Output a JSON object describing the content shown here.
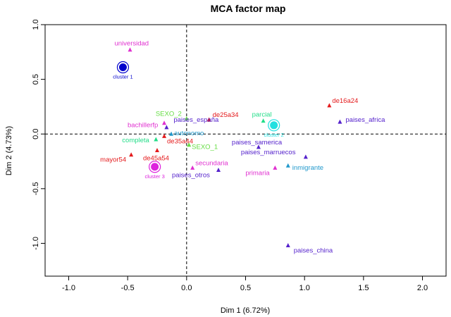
{
  "chart_data": {
    "type": "scatter",
    "title": "MCA factor map",
    "xlabel": "Dim 1 (6.72%)",
    "ylabel": "Dim 2 (4.73%)",
    "xlim": [
      -1.2,
      2.2
    ],
    "ylim": [
      -1.3,
      1.0
    ],
    "xticks": [
      "-1.0",
      "-0.5",
      "0.0",
      "0.5",
      "1.0",
      "1.5",
      "2.0"
    ],
    "yticks": [
      "1.0",
      "0.5",
      "0.0",
      "-0.5",
      "-1.0"
    ],
    "reference_lines": {
      "x": 0,
      "y": 0,
      "style": "dashed"
    },
    "colors": {
      "red": "#e41a1c",
      "magenta": "#e030d0",
      "green": "#66dd44",
      "teal": "#22dd88",
      "purple": "#5522cc",
      "cyan": "#2299cc",
      "blue": "#0000cc",
      "cluster_cyan": "#22e0e0",
      "cluster_magenta": "#dd22dd"
    },
    "points": [
      {
        "label": "universidad",
        "x": -0.48,
        "y": 0.77,
        "color": "magenta",
        "label_dx": -22,
        "label_dy": -6
      },
      {
        "label": "de16a24",
        "x": 1.21,
        "y": 0.26,
        "color": "red",
        "label_dx": 4,
        "label_dy": -4
      },
      {
        "label": "paises_africa",
        "x": 1.3,
        "y": 0.11,
        "color": "purple",
        "label_dx": 8,
        "label_dy": 0
      },
      {
        "label": "parcial",
        "x": 0.65,
        "y": 0.12,
        "color": "teal",
        "label_dx": -16,
        "label_dy": -6
      },
      {
        "label": "SEXO_2",
        "x": 0.0,
        "y": 0.14,
        "color": "green",
        "label_dx": -44,
        "label_dy": -4
      },
      {
        "label": "de25a34",
        "x": 0.19,
        "y": 0.13,
        "color": "red",
        "label_dx": 5,
        "label_dy": -4
      },
      {
        "label": "paises_españa",
        "x": -0.17,
        "y": 0.06,
        "color": "purple",
        "label_dx": 10,
        "label_dy": -8
      },
      {
        "label": "bachillerfp",
        "x": -0.19,
        "y": 0.1,
        "color": "magenta",
        "label_dx": -52,
        "label_dy": 6
      },
      {
        "label": "autonomo",
        "x": -0.13,
        "y": 0.0,
        "color": "cyan",
        "label_dx": 4,
        "label_dy": 2
      },
      {
        "label": "completa",
        "x": -0.26,
        "y": -0.05,
        "color": "teal",
        "label_dx": -48,
        "label_dy": 4
      },
      {
        "label": "de35a44",
        "x": -0.19,
        "y": -0.02,
        "color": "red",
        "label_dx": 4,
        "label_dy": 10
      },
      {
        "label": "SEXO_1",
        "x": 0.02,
        "y": -0.1,
        "color": "green",
        "label_dx": 4,
        "label_dy": 6
      },
      {
        "label": "paises_samerica",
        "x": 0.61,
        "y": -0.12,
        "color": "purple",
        "label_dx": -38,
        "label_dy": -4
      },
      {
        "label": "paises_marruecos",
        "x": 1.01,
        "y": -0.21,
        "color": "purple",
        "label_dx": -92,
        "label_dy": -4
      },
      {
        "label": "de45a54",
        "x": -0.25,
        "y": -0.15,
        "color": "red",
        "label_dx": -20,
        "label_dy": 14
      },
      {
        "label": "mayor54",
        "x": -0.47,
        "y": -0.19,
        "color": "red",
        "label_dx": -44,
        "label_dy": 10
      },
      {
        "label": "secundaria",
        "x": 0.05,
        "y": -0.31,
        "color": "magenta",
        "label_dx": 4,
        "label_dy": -4
      },
      {
        "label": "paises_otros",
        "x": 0.27,
        "y": -0.33,
        "color": "purple",
        "label_dx": -66,
        "label_dy": 10
      },
      {
        "label": "primaria",
        "x": 0.75,
        "y": -0.31,
        "color": "magenta",
        "label_dx": -42,
        "label_dy": 10
      },
      {
        "label": "inmigrante",
        "x": 0.86,
        "y": -0.29,
        "color": "cyan",
        "label_dx": 6,
        "label_dy": 6
      },
      {
        "label": "paises_china",
        "x": 0.86,
        "y": -1.02,
        "color": "purple",
        "label_dx": 8,
        "label_dy": 10
      }
    ],
    "clusters": [
      {
        "label": "cluster 1",
        "x": -0.54,
        "y": 0.61,
        "color": "blue"
      },
      {
        "label": "cluster 2",
        "x": 0.74,
        "y": 0.08,
        "color": "cluster_cyan"
      },
      {
        "label": "cluster 3",
        "x": -0.27,
        "y": -0.3,
        "color": "cluster_magenta"
      }
    ]
  }
}
